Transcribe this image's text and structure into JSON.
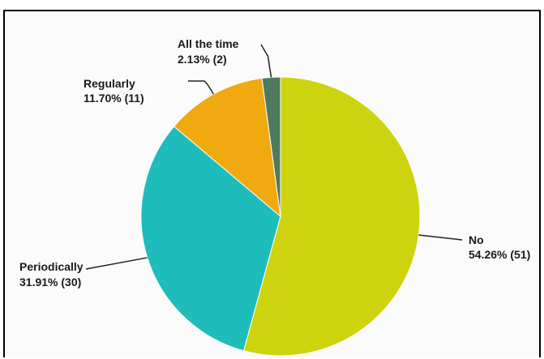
{
  "chart_data": {
    "type": "pie",
    "slices": [
      {
        "label": "No",
        "value_text": "54.26% (51)",
        "percent": 54.26,
        "count": 51,
        "color": "#cdd40f"
      },
      {
        "label": "Periodically",
        "value_text": "31.91% (30)",
        "percent": 31.91,
        "count": 30,
        "color": "#1fbcbc"
      },
      {
        "label": "Regularly",
        "value_text": "11.70% (11)",
        "percent": 11.7,
        "count": 11,
        "color": "#f0a90f"
      },
      {
        "label": "All the time",
        "value_text": "2.13% (2)",
        "percent": 2.13,
        "count": 2,
        "color": "#4f7a5e"
      }
    ],
    "start": "12 o'clock",
    "direction": "clockwise",
    "legend": "none"
  }
}
